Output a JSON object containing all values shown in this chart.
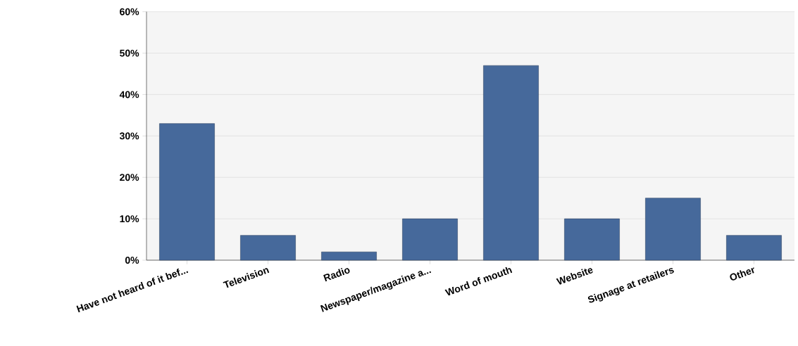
{
  "chart_data": {
    "type": "bar",
    "categories": [
      "Have not heard of it bef...",
      "Television",
      "Radio",
      "Newspaper/magazine a...",
      "Word of mouth",
      "Website",
      "Signage at retailers",
      "Other"
    ],
    "values": [
      33,
      6,
      2,
      10,
      47,
      10,
      15,
      6
    ],
    "color": "#46699b",
    "ylim": [
      0,
      60
    ],
    "yticks": [
      {
        "value": 0,
        "label": "0%"
      },
      {
        "value": 10,
        "label": "10%"
      },
      {
        "value": 20,
        "label": "20%"
      },
      {
        "value": 30,
        "label": "30%"
      },
      {
        "value": 40,
        "label": "40%"
      },
      {
        "value": 50,
        "label": "50%"
      },
      {
        "value": 60,
        "label": "60%"
      }
    ],
    "grid": "y"
  }
}
